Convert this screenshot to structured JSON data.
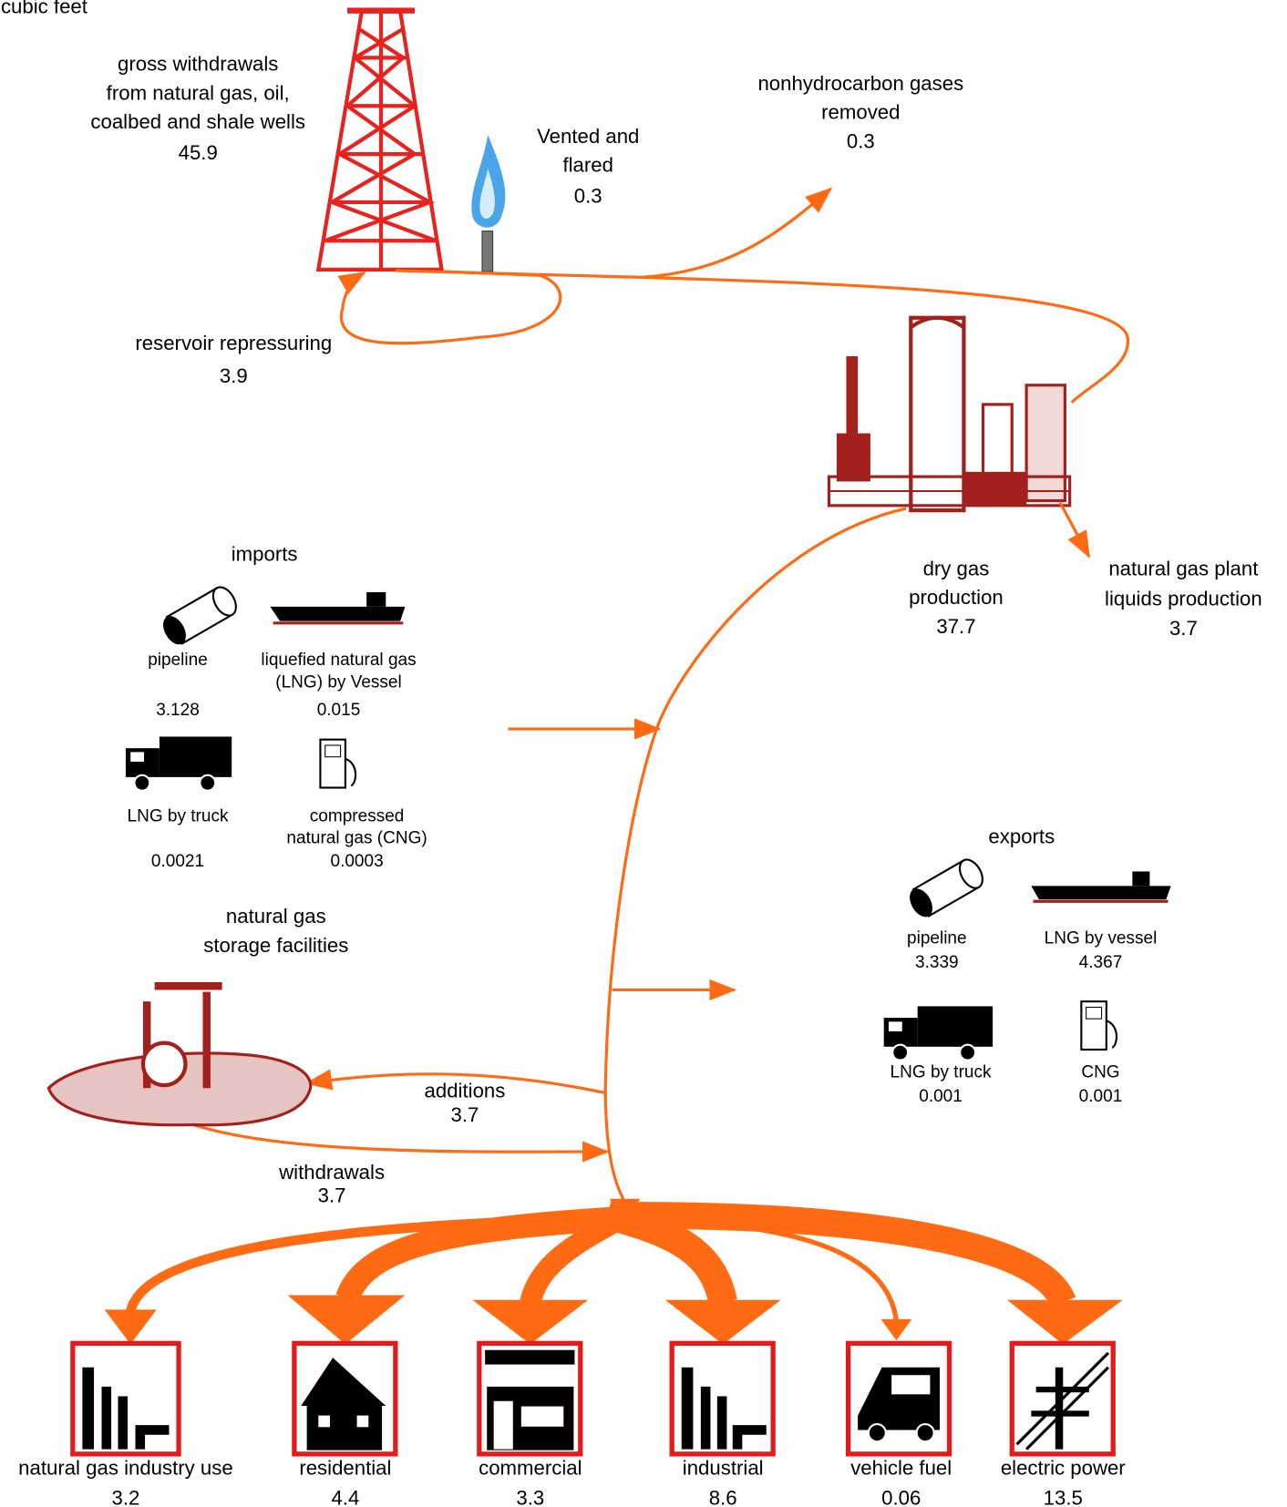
{
  "units": "trillion cubic feet",
  "gross_withdrawals": {
    "label": [
      "gross withdrawals",
      "from natural gas, oil,",
      "coalbed  and shale wells"
    ],
    "value": "45.9"
  },
  "vented_flared": {
    "label": [
      "Vented and",
      "flared"
    ],
    "value": "0.3"
  },
  "nonhydrocarbon_gases": {
    "label": [
      "nonhydrocarbon gases",
      "removed"
    ],
    "value": "0.3"
  },
  "reservoir_repressuring": {
    "label": [
      "reservoir repressuring"
    ],
    "value": "3.9"
  },
  "dry_gas_production": {
    "label": [
      "dry gas",
      "production"
    ],
    "value": "37.7"
  },
  "plant_liquids": {
    "label": [
      "natural gas plant",
      "liquids production"
    ],
    "value": "3.7"
  },
  "imports": {
    "title": "imports",
    "items": [
      {
        "label": [
          "pipeline"
        ],
        "value": "3.128"
      },
      {
        "label": [
          "liquefied natural gas",
          "(LNG) by Vessel"
        ],
        "value": "0.015"
      },
      {
        "label": [
          "LNG by truck"
        ],
        "value": "0.0021"
      },
      {
        "label": [
          "compressed",
          "natural gas (CNG)"
        ],
        "value": "0.0003"
      }
    ]
  },
  "exports": {
    "title": "exports",
    "items": [
      {
        "label": [
          "pipeline"
        ],
        "value": "3.339"
      },
      {
        "label": [
          "LNG by vessel"
        ],
        "value": "4.367"
      },
      {
        "label": [
          "LNG by truck"
        ],
        "value": "0.001"
      },
      {
        "label": [
          "CNG"
        ],
        "value": "0.001"
      }
    ]
  },
  "storage": {
    "label": [
      "natural gas",
      "storage facilities"
    ],
    "additions": {
      "label": "additions",
      "value": "3.7"
    },
    "withdrawals": {
      "label": "withdrawals",
      "value": "3.7"
    }
  },
  "consumption": [
    {
      "label": "natural gas industry use",
      "value": "3.2"
    },
    {
      "label": "residential",
      "value": "4.4"
    },
    {
      "label": "commercial",
      "value": "3.3"
    },
    {
      "label": "industrial",
      "value": "8.6"
    },
    {
      "label": "vehicle fuel",
      "value": "0.06"
    },
    {
      "label": "electric power",
      "value": "13.5"
    }
  ]
}
